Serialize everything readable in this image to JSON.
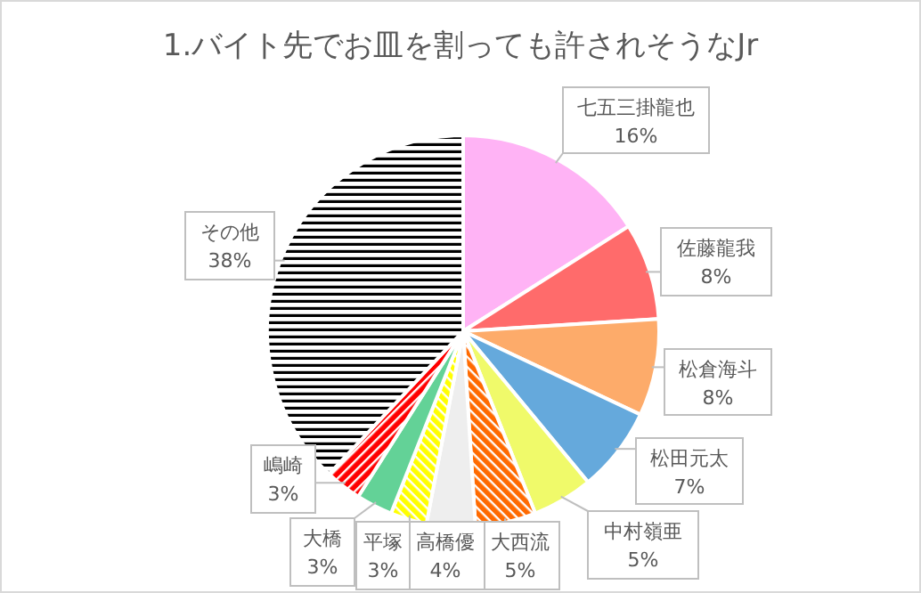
{
  "chart_data": {
    "type": "pie",
    "title": "1.バイト先でお皿を割っても許されそうなJr",
    "categories": [
      "七五三掛龍也",
      "佐藤龍我",
      "松倉海斗",
      "松田元太",
      "中村嶺亜",
      "大西流",
      "高橋優",
      "平塚",
      "大橋",
      "嶋崎",
      "その他"
    ],
    "values": [
      16,
      8,
      8,
      7,
      5,
      5,
      4,
      3,
      3,
      3,
      38
    ],
    "value_labels": [
      "16%",
      "8%",
      "8%",
      "7%",
      "5%",
      "5%",
      "4%",
      "3%",
      "3%",
      "3%",
      "38%"
    ],
    "colors": [
      "#ffb3f5",
      "#ff6b6b",
      "#fdab6a",
      "#65a9dc",
      "#f0fa6a",
      "#ff6a00",
      "#eeeeee",
      "#ffff00",
      "#63d297",
      "#ff0000",
      "#000000"
    ]
  }
}
